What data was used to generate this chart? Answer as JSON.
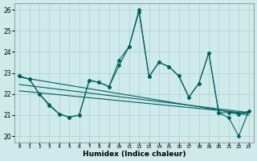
{
  "xlabel": "Humidex (Indice chaleur)",
  "bg_color": "#ceeaea",
  "line_color": "#006060",
  "grid_color": "#b0cccc",
  "ylim": [
    19.7,
    26.3
  ],
  "xlim": [
    -0.5,
    23.5
  ],
  "yticks": [
    20,
    21,
    22,
    23,
    24,
    25,
    26
  ],
  "xticks": [
    0,
    1,
    2,
    3,
    4,
    5,
    6,
    7,
    8,
    9,
    10,
    11,
    12,
    13,
    14,
    15,
    16,
    17,
    18,
    19,
    20,
    21,
    22,
    23
  ],
  "line_upper": [
    22.85,
    22.7,
    22.0,
    21.45,
    21.05,
    20.9,
    21.0,
    22.65,
    22.55,
    22.35,
    23.6,
    24.25,
    25.9,
    22.82,
    23.5,
    23.3,
    22.85,
    21.85,
    22.5,
    23.95,
    21.1,
    21.12,
    21.05,
    21.18
  ],
  "line_mid": [
    22.85,
    22.7,
    22.0,
    21.5,
    21.05,
    20.9,
    21.0,
    22.65,
    22.55,
    22.35,
    23.35,
    24.25,
    26.0,
    22.82,
    23.5,
    23.3,
    22.85,
    21.85,
    22.5,
    23.95,
    21.1,
    20.88,
    20.0,
    21.18
  ],
  "trend1_y0": 22.8,
  "trend1_y1": 21.0,
  "trend2_y0": 22.45,
  "trend2_y1": 21.12,
  "trend3_y0": 22.15,
  "trend3_y1": 21.08
}
